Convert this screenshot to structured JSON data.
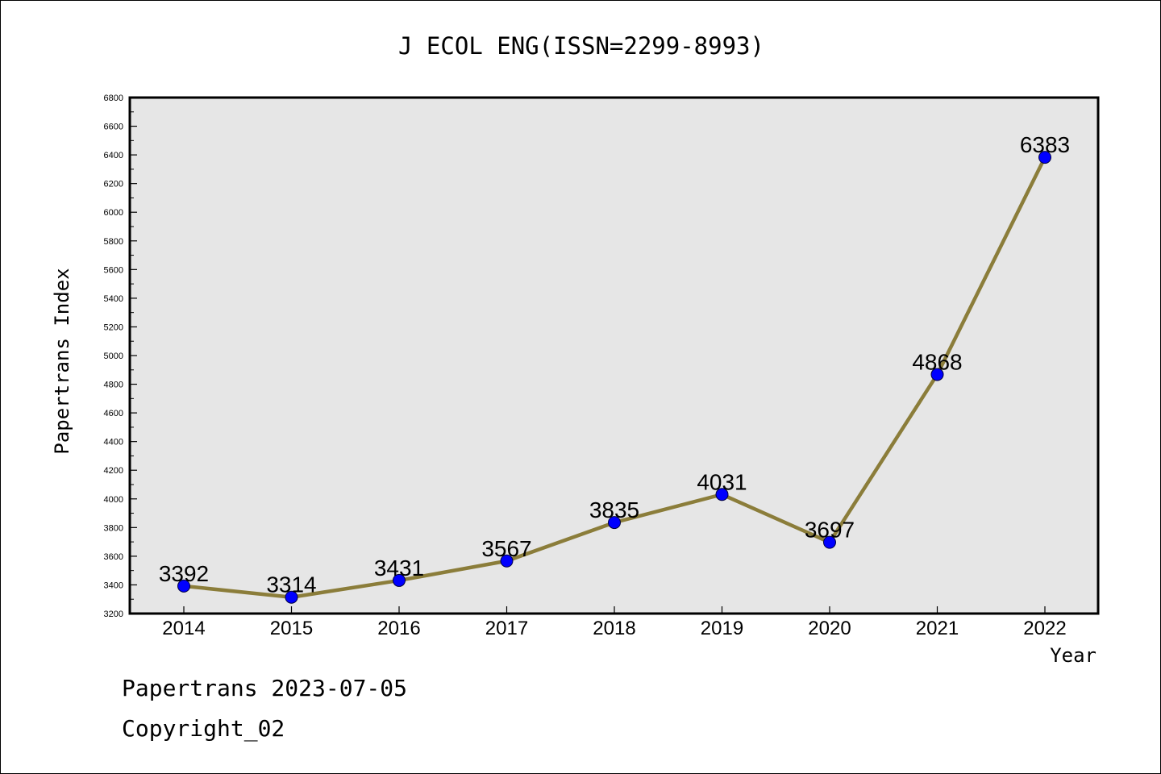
{
  "chart_data": {
    "type": "line",
    "title": "J ECOL ENG(ISSN=2299-8993)",
    "xlabel": "Year",
    "ylabel": "Papertrans Index",
    "categories": [
      "2014",
      "2015",
      "2016",
      "2017",
      "2018",
      "2019",
      "2020",
      "2021",
      "2022"
    ],
    "values": [
      3392,
      3314,
      3431,
      3567,
      3835,
      4031,
      3697,
      4868,
      6383
    ],
    "ylim": [
      3200,
      6800
    ],
    "yticks": [
      3200,
      3400,
      3600,
      3800,
      4000,
      4200,
      4400,
      4600,
      4800,
      5000,
      5200,
      5400,
      5600,
      5800,
      6000,
      6200,
      6400,
      6600,
      6800
    ],
    "grid": false,
    "plot_background": "#e6e6e6",
    "line_color": "#8b7d3a",
    "marker_color": "#0000ff"
  },
  "footer": {
    "line1": "Papertrans 2023-07-05",
    "line2": "Copyright_02"
  }
}
